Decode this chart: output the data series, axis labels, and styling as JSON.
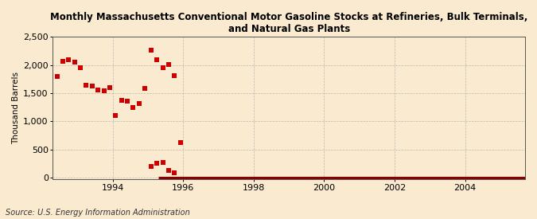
{
  "title": "Monthly Massachusetts Conventional Motor Gasoline Stocks at Refineries, Bulk Terminals, and Natural Gas Plants",
  "ylabel": "Thousand Barrels",
  "source": "Source: U.S. Energy Information Administration",
  "background_color": "#faebd0",
  "scatter_color": "#cc0000",
  "line_color": "#8b0000",
  "xlim_left": 1992.3,
  "xlim_right": 2005.7,
  "ylim_bottom": -30,
  "ylim_top": 2500,
  "yticks": [
    0,
    500,
    1000,
    1500,
    2000,
    2500
  ],
  "xticks": [
    1994,
    1996,
    1998,
    2000,
    2002,
    2004
  ],
  "x_data": [
    1992.42,
    1992.58,
    1992.75,
    1992.92,
    1993.08,
    1993.25,
    1993.42,
    1993.58,
    1993.75,
    1993.92,
    1994.08,
    1994.25,
    1994.42,
    1994.58,
    1994.75,
    1994.92,
    1994.92,
    1995.08,
    1995.25,
    1995.42,
    1995.58,
    1995.75,
    1995.08,
    1995.25,
    1995.42,
    1995.58,
    1995.75,
    1995.92
  ],
  "y_data": [
    1800,
    2060,
    2100,
    2050,
    1960,
    1640,
    1630,
    1560,
    1540,
    1600,
    1100,
    1380,
    1360,
    1250,
    1310,
    1580,
    1580,
    2270,
    2100,
    1960,
    2010,
    1810,
    200,
    255,
    270,
    130,
    90,
    620
  ],
  "line_x_start": 1995.3,
  "line_x_end": 2005.7,
  "line_y": 0,
  "marker_size": 16
}
